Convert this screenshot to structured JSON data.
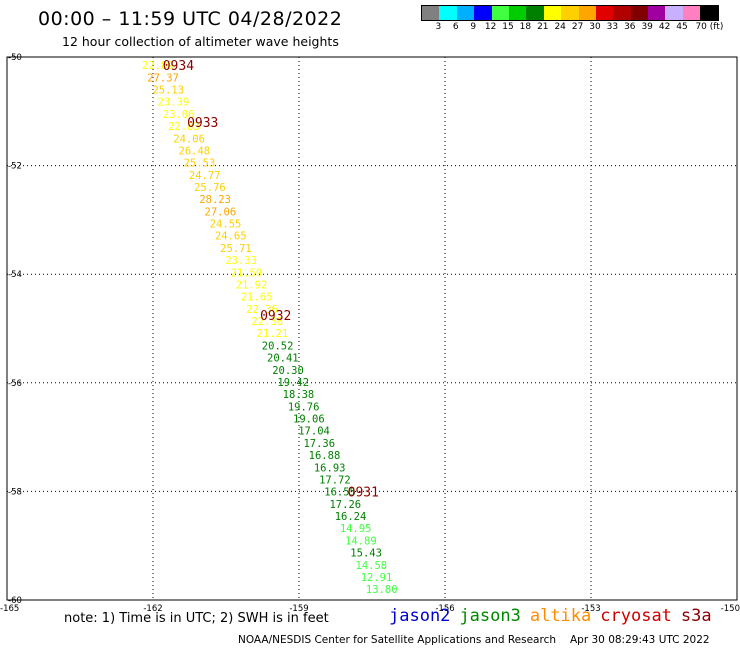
{
  "header": {
    "title": "00:00 – 11:59 UTC 04/28/2022",
    "subtitle": "12 hour collection of altimeter wave heights"
  },
  "legend": {
    "colors": [
      "#808080",
      "#00ffff",
      "#00b0ff",
      "#0000ff",
      "#40ff40",
      "#00cc00",
      "#008000",
      "#ffff00",
      "#ffd000",
      "#ffa500",
      "#e00000",
      "#b00000",
      "#800000",
      "#a000a0",
      "#c8b0ff",
      "#ff80c0",
      "#000000"
    ],
    "labels": [
      "3",
      "6",
      "9",
      "12",
      "15",
      "18",
      "21",
      "24",
      "27",
      "30",
      "33",
      "36",
      "39",
      "42",
      "45",
      "70 (ft)"
    ]
  },
  "map": {
    "lat_range": [
      -60,
      -50
    ],
    "lon_range": [
      -165,
      -150
    ],
    "lat_ticks": [
      "-50",
      "-52",
      "-54",
      "-56",
      "-58",
      "-60"
    ],
    "lon_ticks": [
      "-165",
      "-162",
      "-159",
      "-156",
      "-153",
      "-150"
    ],
    "track_values": [
      "22.89",
      "27.37",
      "25.13",
      "23.39",
      "23.06",
      "22.83",
      "24.06",
      "26.48",
      "25.53",
      "24.77",
      "25.76",
      "28.23",
      "27.06",
      "24.55",
      "24.65",
      "25.71",
      "23.33",
      "21.59",
      "21.92",
      "21.65",
      "22.36",
      "22.38",
      "21.21",
      "20.52",
      "20.41",
      "20.30",
      "19.42",
      "18.38",
      "19.76",
      "19.06",
      "17.04",
      "17.36",
      "16.88",
      "16.93",
      "17.72",
      "16.55",
      "17.26",
      "16.24",
      "14.95",
      "14.89",
      "15.43",
      "14.58",
      "12.91",
      "13.80"
    ],
    "time_labels": [
      {
        "text": "0934",
        "lat": -50.15,
        "lon": -161.8
      },
      {
        "text": "0933",
        "lat": -51.2,
        "lon": -161.3
      },
      {
        "text": "0932",
        "lat": -54.75,
        "lon": -159.8
      },
      {
        "text": "0931",
        "lat": -58.0,
        "lon": -158.0
      }
    ]
  },
  "footer": {
    "note": "note: 1) Time is in UTC; 2) SWH is in feet",
    "missions": [
      {
        "name": "jason2",
        "color": "#0000cc"
      },
      {
        "name": "jason3",
        "color": "#008800"
      },
      {
        "name": "altika",
        "color": "#ff8c00"
      },
      {
        "name": "cryosat",
        "color": "#cc0000"
      },
      {
        "name": "s3a",
        "color": "#8b0000"
      }
    ],
    "credit": "NOAA/NESDIS Center for Satellite Applications and Research",
    "timestamp": "Apr 30 08:29:43 UTC 2022"
  }
}
